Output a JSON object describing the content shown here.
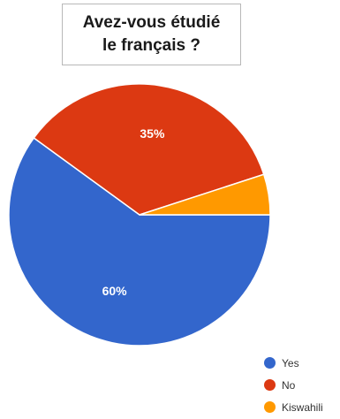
{
  "title": {
    "line1": "Avez-vous étudié",
    "line2": "le français ?"
  },
  "chart_data": {
    "type": "pie",
    "title": "Avez-vous étudié le français ?",
    "slices": [
      {
        "label": "Yes",
        "value": 60,
        "color": "#3366cc",
        "data_label": "60%"
      },
      {
        "label": "No",
        "value": 35,
        "color": "#dc3912",
        "data_label": "35%"
      },
      {
        "label": "Kiswahili",
        "value": 5,
        "color": "#ff9900",
        "data_label": ""
      }
    ],
    "legend_position": "bottom-right"
  },
  "legend": {
    "items": [
      {
        "label": "Yes",
        "color": "#3366cc"
      },
      {
        "label": "No",
        "color": "#dc3912"
      },
      {
        "label": "Kiswahili",
        "color": "#ff9900"
      }
    ]
  }
}
